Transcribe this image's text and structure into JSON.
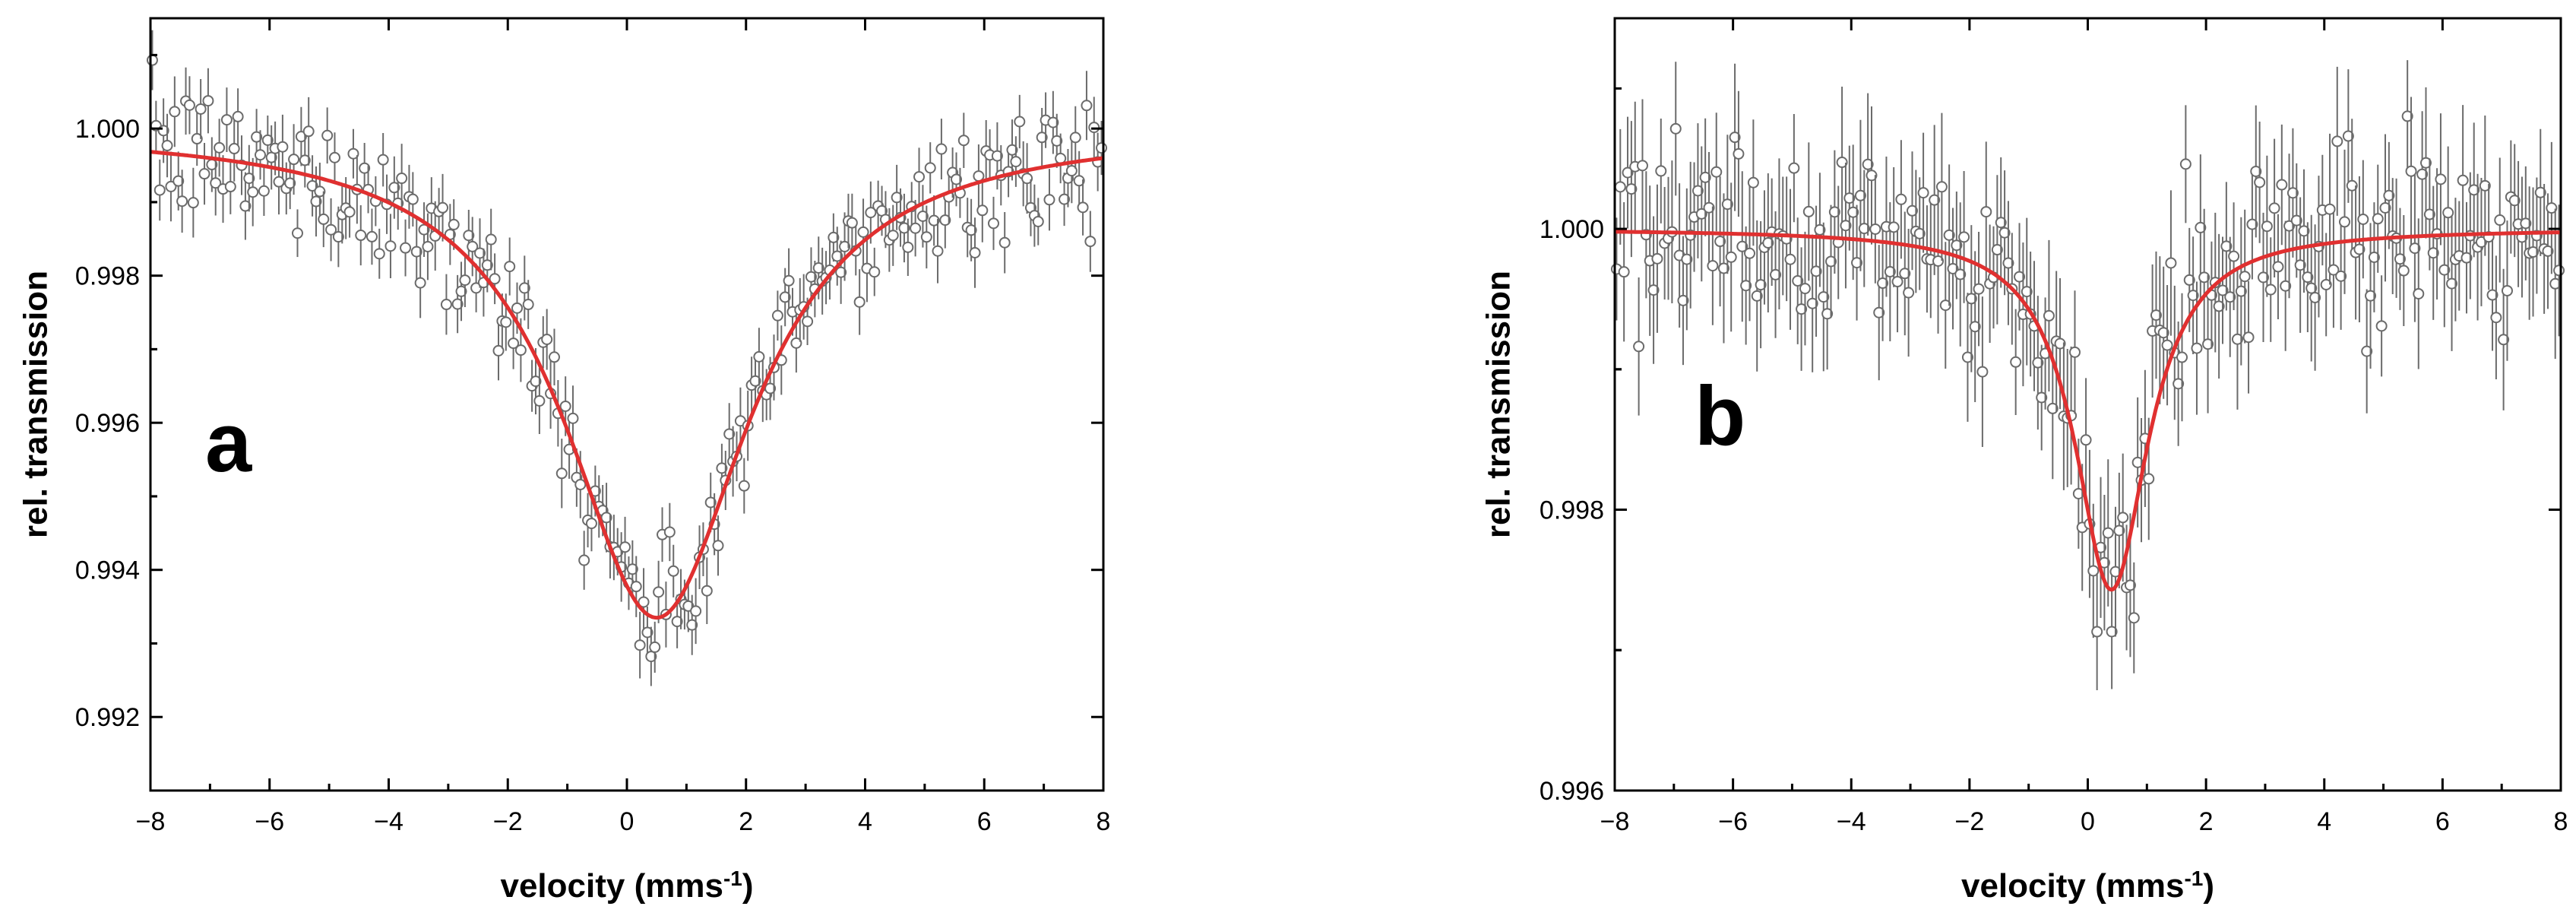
{
  "chart_data": [
    {
      "type": "scatter",
      "panel_label": "a",
      "xlabel": "velocity (mms",
      "xlabel_sup": "-1",
      "xlabel_end": ")",
      "ylabel": "rel. transmission",
      "xlim": [
        -8,
        8
      ],
      "ylim": [
        0.991,
        1.0015
      ],
      "xticks": [
        -8,
        -6,
        -4,
        -2,
        0,
        2,
        4,
        6,
        8
      ],
      "yticks": [
        0.992,
        0.994,
        0.996,
        0.998,
        1.0
      ],
      "ytick_labels": [
        "0.992",
        "0.994",
        "0.996",
        "0.998",
        "1.000"
      ],
      "grid": false,
      "fit": {
        "baseline": 1.0,
        "depth": 0.00665,
        "center": 0.5,
        "halfwidth": 1.9
      },
      "noise": 0.00045,
      "errorbar": 0.0004,
      "n_points": 256,
      "marker_color": "#6b6b6b",
      "fit_color": "#e03030"
    },
    {
      "type": "scatter",
      "panel_label": "b",
      "xlabel": "velocity (mms",
      "xlabel_sup": "-1",
      "xlabel_end": ")",
      "ylabel": "rel. transmission",
      "xlim": [
        -8,
        8
      ],
      "ylim": [
        0.996,
        1.0015
      ],
      "xticks": [
        -8,
        -6,
        -4,
        -2,
        0,
        2,
        4,
        6,
        8
      ],
      "yticks": [
        0.996,
        0.998,
        1.0
      ],
      "ytick_labels": [
        "0.996",
        "0.998",
        "1.000"
      ],
      "grid": false,
      "fit": {
        "baseline": 1.0,
        "depth": 0.00257,
        "center": 0.4,
        "halfwidth": 0.75
      },
      "noise": 0.00035,
      "errorbar": 0.00045,
      "n_points": 256,
      "marker_color": "#6b6b6b",
      "fit_color": "#e03030"
    }
  ]
}
